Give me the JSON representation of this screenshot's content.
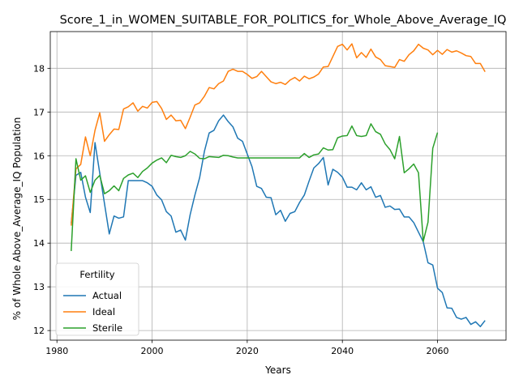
{
  "chart_data": {
    "type": "line",
    "title": "Score_1_in_WOMEN_SUITABLE_FOR_POLITICS_for_Whole_Above_Average_IQ",
    "xlabel": "Years",
    "ylabel": "% of Whole Above_Average_IQ Population",
    "xlim": [
      1978.6,
      2074.4
    ],
    "ylim": [
      11.78,
      18.84
    ],
    "x_ticks": [
      1980,
      2000,
      2020,
      2040,
      2060
    ],
    "y_ticks": [
      12,
      13,
      14,
      15,
      16,
      17,
      18
    ],
    "grid": true,
    "legend": {
      "title": "Fertility",
      "placement": "lower-left"
    },
    "series": [
      {
        "name": "Actual",
        "color": "#1f77b4",
        "points": [
          [
            1983,
            14.45
          ],
          [
            1984,
            15.55
          ],
          [
            1985,
            15.62
          ],
          [
            1986,
            15.05
          ],
          [
            1987,
            14.7
          ],
          [
            1988,
            16.3
          ],
          [
            1989,
            15.6
          ],
          [
            1990,
            14.9
          ],
          [
            1991,
            14.21
          ],
          [
            1992,
            14.62
          ],
          [
            1993,
            14.57
          ],
          [
            1994,
            14.6
          ],
          [
            1995,
            15.43
          ],
          [
            1996,
            15.43
          ],
          [
            1997,
            15.43
          ],
          [
            1998,
            15.43
          ],
          [
            1999,
            15.38
          ],
          [
            2000,
            15.3
          ],
          [
            2001,
            15.1
          ],
          [
            2002,
            14.99
          ],
          [
            2003,
            14.72
          ],
          [
            2004,
            14.62
          ],
          [
            2005,
            14.25
          ],
          [
            2006,
            14.3
          ],
          [
            2007,
            14.07
          ],
          [
            2008,
            14.65
          ],
          [
            2009,
            15.1
          ],
          [
            2010,
            15.5
          ],
          [
            2011,
            16.1
          ],
          [
            2012,
            16.52
          ],
          [
            2013,
            16.58
          ],
          [
            2014,
            16.8
          ],
          [
            2015,
            16.93
          ],
          [
            2016,
            16.78
          ],
          [
            2017,
            16.66
          ],
          [
            2018,
            16.4
          ],
          [
            2019,
            16.33
          ],
          [
            2020,
            16.04
          ],
          [
            2021,
            15.75
          ],
          [
            2022,
            15.3
          ],
          [
            2023,
            15.25
          ],
          [
            2024,
            15.05
          ],
          [
            2025,
            15.04
          ],
          [
            2026,
            14.65
          ],
          [
            2027,
            14.75
          ],
          [
            2028,
            14.5
          ],
          [
            2029,
            14.68
          ],
          [
            2030,
            14.72
          ],
          [
            2031,
            14.93
          ],
          [
            2032,
            15.1
          ],
          [
            2033,
            15.42
          ],
          [
            2034,
            15.72
          ],
          [
            2035,
            15.82
          ],
          [
            2036,
            15.96
          ],
          [
            2037,
            15.33
          ],
          [
            2038,
            15.69
          ],
          [
            2039,
            15.62
          ],
          [
            2040,
            15.51
          ],
          [
            2041,
            15.28
          ],
          [
            2042,
            15.28
          ],
          [
            2043,
            15.22
          ],
          [
            2044,
            15.38
          ],
          [
            2045,
            15.22
          ],
          [
            2046,
            15.29
          ],
          [
            2047,
            15.05
          ],
          [
            2048,
            15.09
          ],
          [
            2049,
            14.82
          ],
          [
            2050,
            14.85
          ],
          [
            2051,
            14.77
          ],
          [
            2052,
            14.78
          ],
          [
            2053,
            14.6
          ],
          [
            2054,
            14.6
          ],
          [
            2055,
            14.47
          ],
          [
            2056,
            14.25
          ],
          [
            2057,
            14.03
          ],
          [
            2058,
            13.55
          ],
          [
            2059,
            13.5
          ],
          [
            2060,
            12.97
          ],
          [
            2061,
            12.87
          ],
          [
            2062,
            12.52
          ],
          [
            2063,
            12.51
          ],
          [
            2064,
            12.3
          ],
          [
            2065,
            12.26
          ],
          [
            2066,
            12.3
          ],
          [
            2067,
            12.14
          ],
          [
            2068,
            12.2
          ],
          [
            2069,
            12.09
          ],
          [
            2070,
            12.23
          ]
        ]
      },
      {
        "name": "Ideal",
        "color": "#ff7f0e",
        "points": [
          [
            1983,
            14.4
          ],
          [
            1984,
            15.7
          ],
          [
            1985,
            15.8
          ],
          [
            1986,
            16.43
          ],
          [
            1987,
            16.0
          ],
          [
            1988,
            16.58
          ],
          [
            1989,
            16.98
          ],
          [
            1990,
            16.33
          ],
          [
            1991,
            16.48
          ],
          [
            1992,
            16.61
          ],
          [
            1993,
            16.6
          ],
          [
            1994,
            17.07
          ],
          [
            1995,
            17.12
          ],
          [
            1996,
            17.21
          ],
          [
            1997,
            17.02
          ],
          [
            1998,
            17.13
          ],
          [
            1999,
            17.09
          ],
          [
            2000,
            17.22
          ],
          [
            2001,
            17.24
          ],
          [
            2002,
            17.08
          ],
          [
            2003,
            16.83
          ],
          [
            2004,
            16.93
          ],
          [
            2005,
            16.8
          ],
          [
            2006,
            16.81
          ],
          [
            2007,
            16.62
          ],
          [
            2008,
            16.88
          ],
          [
            2009,
            17.16
          ],
          [
            2010,
            17.21
          ],
          [
            2011,
            17.36
          ],
          [
            2012,
            17.56
          ],
          [
            2013,
            17.53
          ],
          [
            2014,
            17.65
          ],
          [
            2015,
            17.71
          ],
          [
            2016,
            17.93
          ],
          [
            2017,
            17.98
          ],
          [
            2018,
            17.93
          ],
          [
            2019,
            17.93
          ],
          [
            2020,
            17.86
          ],
          [
            2021,
            17.77
          ],
          [
            2022,
            17.81
          ],
          [
            2023,
            17.93
          ],
          [
            2024,
            17.81
          ],
          [
            2025,
            17.69
          ],
          [
            2026,
            17.65
          ],
          [
            2027,
            17.68
          ],
          [
            2028,
            17.63
          ],
          [
            2029,
            17.73
          ],
          [
            2030,
            17.79
          ],
          [
            2031,
            17.71
          ],
          [
            2032,
            17.82
          ],
          [
            2033,
            17.76
          ],
          [
            2034,
            17.8
          ],
          [
            2035,
            17.87
          ],
          [
            2036,
            18.03
          ],
          [
            2037,
            18.04
          ],
          [
            2038,
            18.27
          ],
          [
            2039,
            18.5
          ],
          [
            2040,
            18.55
          ],
          [
            2041,
            18.42
          ],
          [
            2042,
            18.56
          ],
          [
            2043,
            18.24
          ],
          [
            2044,
            18.36
          ],
          [
            2045,
            18.25
          ],
          [
            2046,
            18.44
          ],
          [
            2047,
            18.26
          ],
          [
            2048,
            18.2
          ],
          [
            2049,
            18.06
          ],
          [
            2050,
            18.04
          ],
          [
            2051,
            18.02
          ],
          [
            2052,
            18.2
          ],
          [
            2053,
            18.16
          ],
          [
            2054,
            18.31
          ],
          [
            2055,
            18.4
          ],
          [
            2056,
            18.55
          ],
          [
            2057,
            18.46
          ],
          [
            2058,
            18.42
          ],
          [
            2059,
            18.31
          ],
          [
            2060,
            18.41
          ],
          [
            2061,
            18.32
          ],
          [
            2062,
            18.43
          ],
          [
            2063,
            18.37
          ],
          [
            2064,
            18.4
          ],
          [
            2065,
            18.35
          ],
          [
            2066,
            18.29
          ],
          [
            2067,
            18.27
          ],
          [
            2068,
            18.11
          ],
          [
            2069,
            18.11
          ],
          [
            2070,
            17.92
          ]
        ]
      },
      {
        "name": "Sterile",
        "color": "#2ca02c",
        "points": [
          [
            1983,
            13.82
          ],
          [
            1984,
            15.93
          ],
          [
            1985,
            15.44
          ],
          [
            1986,
            15.54
          ],
          [
            1987,
            15.16
          ],
          [
            1988,
            15.44
          ],
          [
            1989,
            15.55
          ],
          [
            1990,
            15.13
          ],
          [
            1991,
            15.2
          ],
          [
            1992,
            15.31
          ],
          [
            1993,
            15.2
          ],
          [
            1994,
            15.48
          ],
          [
            1995,
            15.56
          ],
          [
            1996,
            15.6
          ],
          [
            1997,
            15.5
          ],
          [
            1998,
            15.64
          ],
          [
            1999,
            15.72
          ],
          [
            2000,
            15.83
          ],
          [
            2001,
            15.9
          ],
          [
            2002,
            15.95
          ],
          [
            2003,
            15.84
          ],
          [
            2004,
            16.01
          ],
          [
            2005,
            15.98
          ],
          [
            2006,
            15.96
          ],
          [
            2007,
            16.0
          ],
          [
            2008,
            16.1
          ],
          [
            2009,
            16.04
          ],
          [
            2010,
            15.94
          ],
          [
            2011,
            15.93
          ],
          [
            2012,
            15.98
          ],
          [
            2013,
            15.97
          ],
          [
            2014,
            15.96
          ],
          [
            2015,
            16.01
          ],
          [
            2016,
            16.0
          ],
          [
            2017,
            15.97
          ],
          [
            2018,
            15.95
          ],
          [
            2019,
            15.95
          ],
          [
            2020,
            15.95
          ],
          [
            2021,
            15.95
          ],
          [
            2022,
            15.95
          ],
          [
            2023,
            15.95
          ],
          [
            2024,
            15.95
          ],
          [
            2025,
            15.95
          ],
          [
            2026,
            15.95
          ],
          [
            2027,
            15.95
          ],
          [
            2028,
            15.95
          ],
          [
            2029,
            15.95
          ],
          [
            2030,
            15.95
          ],
          [
            2031,
            15.95
          ],
          [
            2032,
            16.05
          ],
          [
            2033,
            15.96
          ],
          [
            2034,
            16.02
          ],
          [
            2035,
            16.04
          ],
          [
            2036,
            16.18
          ],
          [
            2037,
            16.13
          ],
          [
            2038,
            16.14
          ],
          [
            2039,
            16.41
          ],
          [
            2040,
            16.45
          ],
          [
            2041,
            16.46
          ],
          [
            2042,
            16.68
          ],
          [
            2043,
            16.46
          ],
          [
            2044,
            16.44
          ],
          [
            2045,
            16.46
          ],
          [
            2046,
            16.73
          ],
          [
            2047,
            16.55
          ],
          [
            2048,
            16.49
          ],
          [
            2049,
            16.27
          ],
          [
            2050,
            16.14
          ],
          [
            2051,
            15.93
          ],
          [
            2052,
            16.44
          ],
          [
            2053,
            15.61
          ],
          [
            2054,
            15.7
          ],
          [
            2055,
            15.81
          ],
          [
            2056,
            15.61
          ],
          [
            2057,
            14.04
          ],
          [
            2058,
            14.48
          ],
          [
            2059,
            16.17
          ],
          [
            2060,
            16.53
          ]
        ]
      }
    ]
  }
}
